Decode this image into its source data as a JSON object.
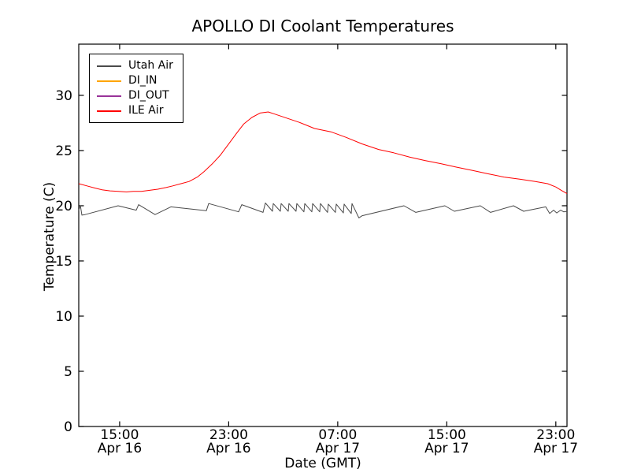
{
  "title": "APOLLO DI Coolant Temperatures",
  "colors": {
    "background": "#ffffff",
    "axis": "#000000"
  },
  "chart_data": {
    "type": "line",
    "title": "APOLLO DI Coolant Temperatures",
    "xlabel": "Date (GMT)",
    "ylabel": "Temperature (C)",
    "x_unit_note": "hours after Apr 16 12:00 GMT",
    "xlim": [
      0,
      35.82
    ],
    "ylim": [
      0,
      34.64
    ],
    "grid": false,
    "legend_position": "upper left",
    "yticks": [
      0,
      5,
      10,
      15,
      20,
      25,
      30
    ],
    "xticks": [
      {
        "pos": 3,
        "time": "15:00",
        "date": "Apr 16"
      },
      {
        "pos": 11,
        "time": "23:00",
        "date": "Apr 16"
      },
      {
        "pos": 19,
        "time": "07:00",
        "date": "Apr 17"
      },
      {
        "pos": 27,
        "time": "15:00",
        "date": "Apr 17"
      },
      {
        "pos": 35,
        "time": "23:00",
        "date": "Apr 17"
      }
    ],
    "series": [
      {
        "name": "Utah Air",
        "color": "#4a4a4a",
        "x": [
          0,
          0.12,
          0.23,
          0.46,
          2.89,
          4.22,
          4.39,
          5.6,
          6.76,
          9.36,
          9.53,
          11.73,
          11.96,
          13.52,
          13.69,
          14.21,
          14.27,
          14.79,
          14.85,
          15.37,
          15.42,
          15.94,
          16.0,
          16.52,
          16.58,
          17.1,
          17.16,
          17.68,
          17.73,
          18.25,
          18.31,
          18.83,
          18.89,
          19.41,
          19.47,
          19.99,
          20.05,
          20.55,
          20.8,
          23.86,
          24.73,
          26.86,
          27.56,
          29.46,
          30.21,
          31.89,
          32.64,
          34.26,
          34.55,
          34.84,
          35.07,
          35.35,
          35.58,
          35.82
        ],
        "y": [
          19.6,
          20.0,
          19.15,
          19.2,
          20.0,
          19.6,
          20.1,
          19.2,
          19.9,
          19.55,
          20.2,
          19.45,
          20.1,
          19.4,
          20.25,
          19.5,
          20.2,
          19.5,
          20.2,
          19.5,
          20.2,
          19.5,
          20.2,
          19.45,
          20.2,
          19.45,
          20.2,
          19.45,
          20.2,
          19.4,
          20.15,
          19.4,
          20.15,
          19.35,
          20.15,
          19.3,
          20.2,
          18.9,
          19.1,
          20.0,
          19.4,
          20.0,
          19.5,
          20.0,
          19.4,
          20.0,
          19.5,
          19.9,
          19.3,
          19.6,
          19.35,
          19.6,
          19.45,
          19.5
        ]
      },
      {
        "name": "DI_IN",
        "color": "#ffa500",
        "x": [],
        "y": []
      },
      {
        "name": "DI_OUT",
        "color": "#993399",
        "x": [],
        "y": []
      },
      {
        "name": "ILE Air",
        "color": "#ff0000",
        "x": [
          0,
          0.6,
          1.2,
          1.7,
          2.3,
          2.9,
          3.5,
          4.0,
          4.6,
          5.2,
          5.8,
          6.4,
          6.9,
          7.5,
          8.1,
          8.7,
          9.2,
          9.8,
          10.4,
          11.0,
          11.6,
          12.1,
          12.7,
          13.3,
          13.9,
          14.4,
          15.0,
          15.6,
          16.2,
          16.8,
          17.3,
          17.9,
          18.5,
          19.6,
          20.8,
          22.0,
          23.1,
          24.3,
          25.4,
          26.6,
          27.7,
          28.9,
          30.0,
          31.2,
          32.4,
          33.5,
          34.4,
          35.0,
          35.4,
          35.82
        ],
        "y": [
          22.0,
          21.8,
          21.6,
          21.45,
          21.35,
          21.3,
          21.25,
          21.3,
          21.3,
          21.4,
          21.5,
          21.65,
          21.8,
          22.0,
          22.2,
          22.6,
          23.1,
          23.8,
          24.6,
          25.6,
          26.6,
          27.4,
          28.0,
          28.4,
          28.5,
          28.3,
          28.05,
          27.8,
          27.55,
          27.25,
          27.0,
          26.85,
          26.7,
          26.2,
          25.6,
          25.1,
          24.8,
          24.4,
          24.1,
          23.8,
          23.5,
          23.2,
          22.9,
          22.6,
          22.4,
          22.2,
          22.0,
          21.7,
          21.4,
          21.1
        ]
      }
    ]
  }
}
